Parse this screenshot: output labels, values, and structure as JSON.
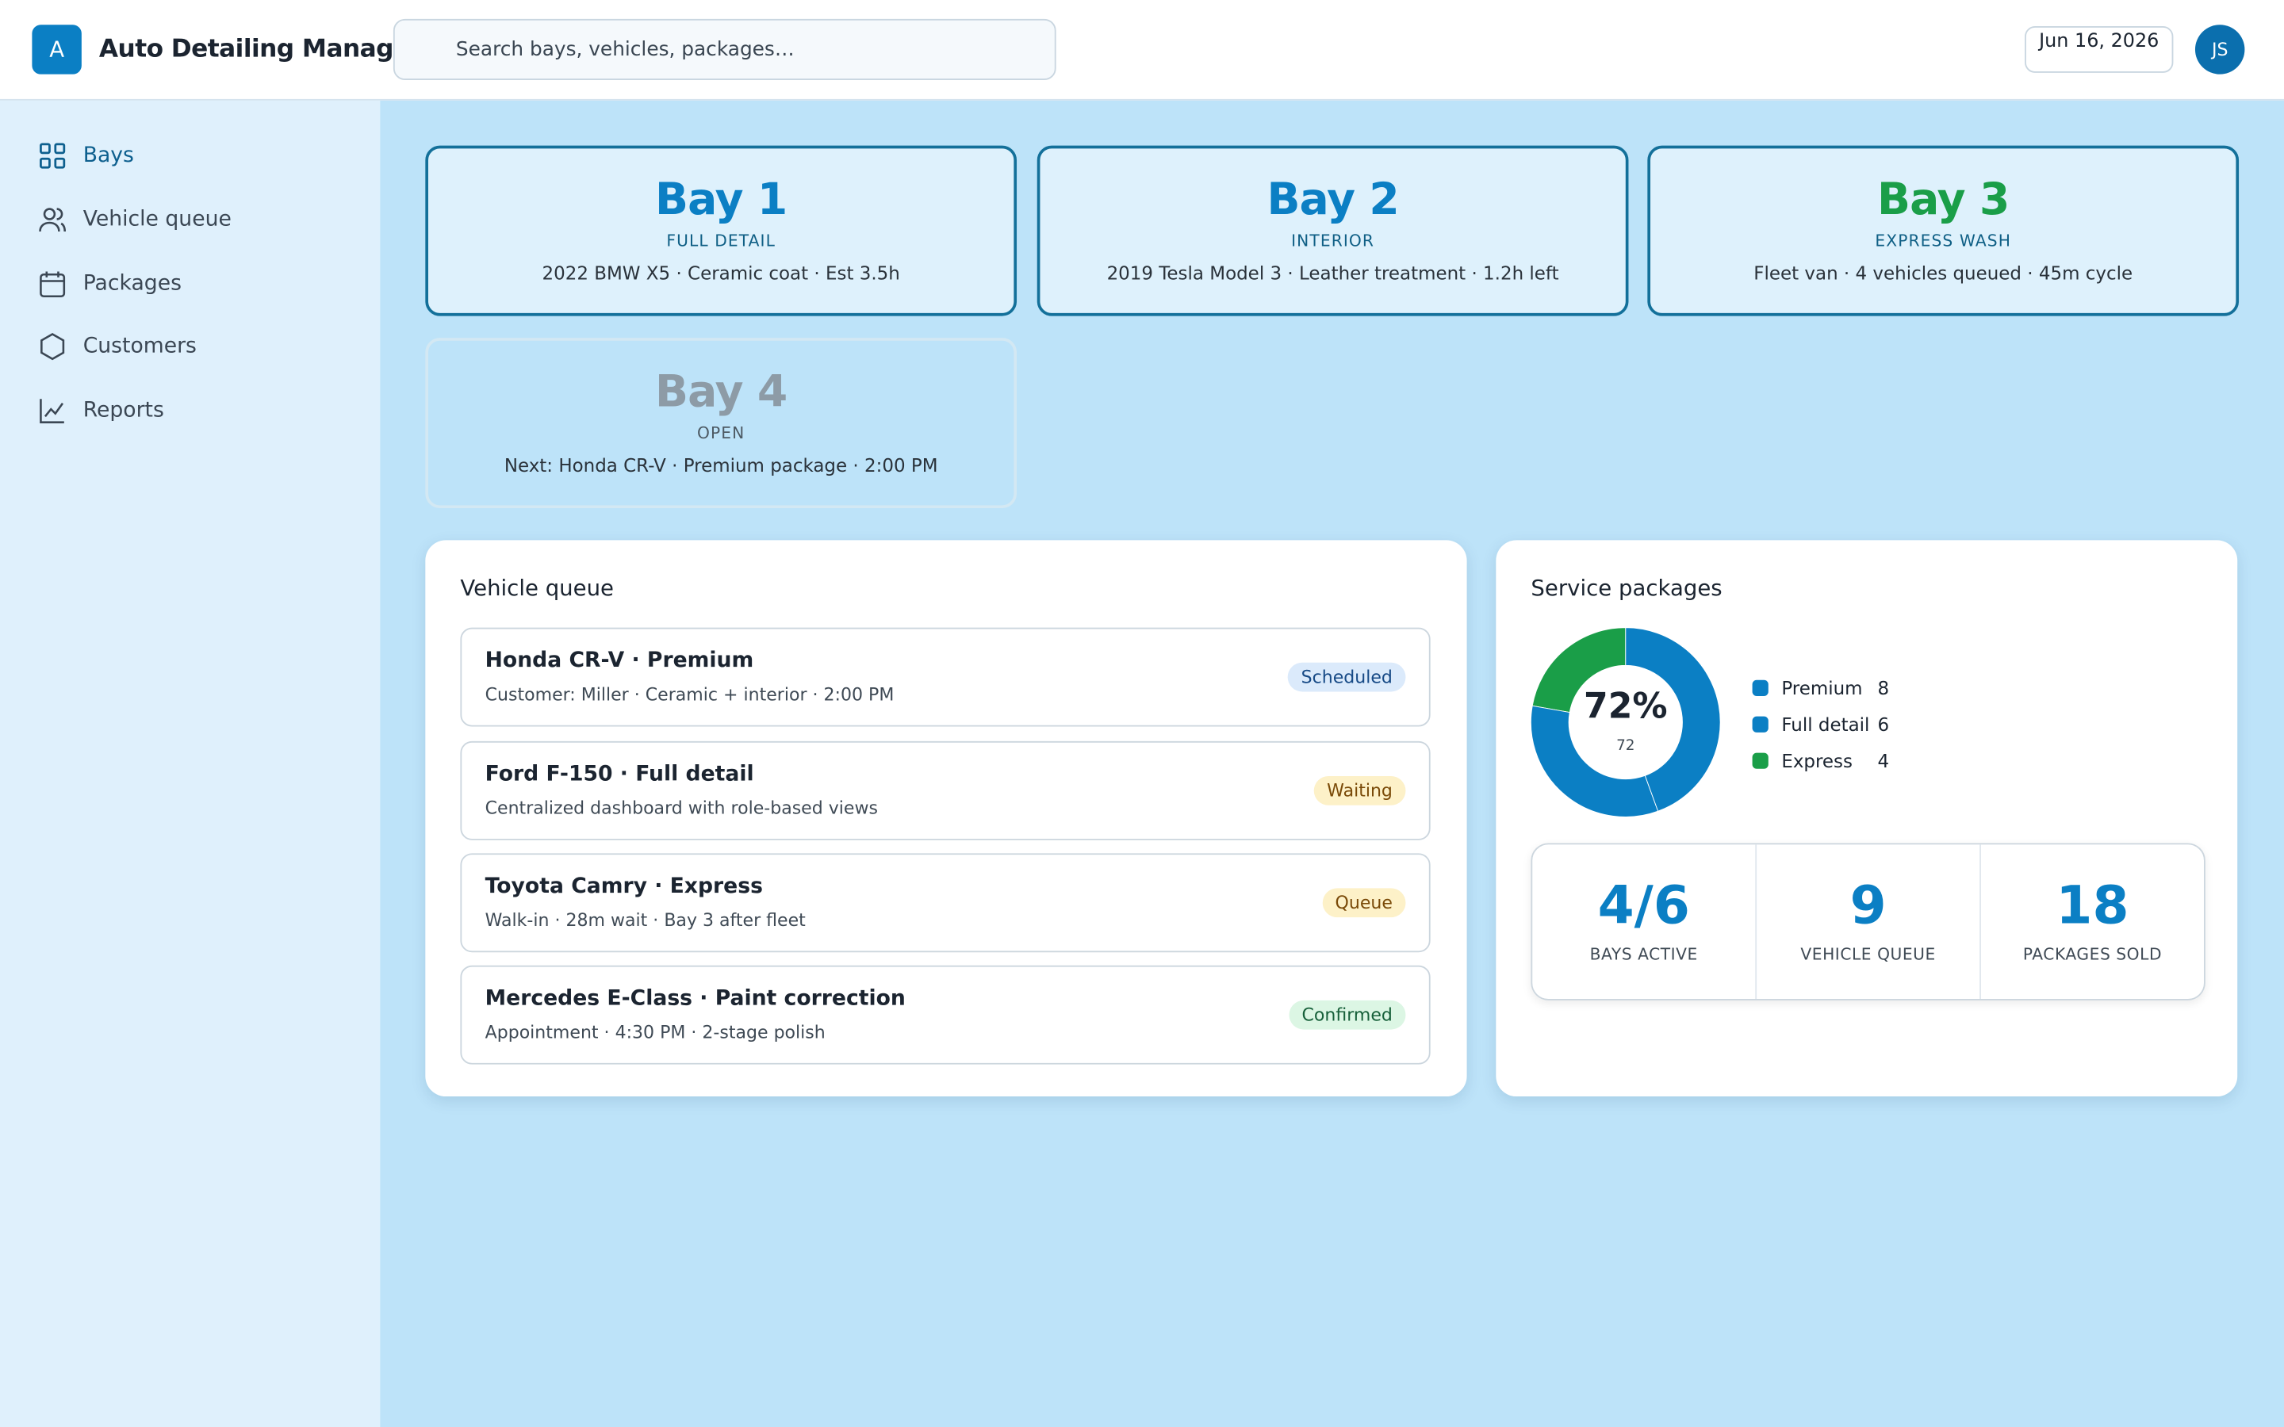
{
  "header": {
    "logo": "A",
    "title": "Auto Detailing Manager",
    "search_placeholder": "Search bays, vehicles, packages…",
    "date": "Jun 16, 2026",
    "avatar": "JS"
  },
  "nav": [
    "Bays",
    "Vehicle queue",
    "Packages",
    "Customers",
    "Reports"
  ],
  "bays": [
    {
      "name": "Bay 1",
      "type": "FULL DETAIL",
      "detail": "2022 BMW X5 · Ceramic coat · Est 3.5h"
    },
    {
      "name": "Bay 2",
      "type": "INTERIOR",
      "detail": "2019 Tesla Model 3 · Leather treatment · 1.2h left"
    },
    {
      "name": "Bay 3",
      "type": "EXPRESS WASH",
      "detail": "Fleet van · 4 vehicles queued · 45m cycle"
    },
    {
      "name": "Bay 4",
      "type": "OPEN",
      "detail": "Next: Honda CR-V · Premium package · 2:00 PM"
    }
  ],
  "queue": {
    "title": "Vehicle queue",
    "items": [
      {
        "title": "Honda CR-V · Premium",
        "subtitle": "Customer: Miller · Ceramic + interior · 2:00 PM",
        "status": "Scheduled"
      },
      {
        "title": "Ford F-150 · Full detail",
        "subtitle": "Centralized dashboard with role-based views",
        "status": "Waiting"
      },
      {
        "title": "Toyota Camry · Express",
        "subtitle": "Walk-in · 28m wait · Bay 3 after fleet",
        "status": "Queue"
      },
      {
        "title": "Mercedes E-Class · Paint correction",
        "subtitle": "Appointment · 4:30 PM · 2-stage polish",
        "status": "Confirmed"
      }
    ]
  },
  "packages": {
    "title": "Service packages",
    "center_label": "72%",
    "center_value": 72,
    "chart_data": {
      "type": "donut",
      "series": [
        {
          "name": "Premium",
          "color": "#0b7fc4",
          "value": 8
        },
        {
          "name": "Full detail",
          "color": "#0b7fc4",
          "value": 6
        },
        {
          "name": "Express",
          "color": "#1a9e48",
          "value": 4
        }
      ]
    },
    "stats": [
      {
        "value": "4/6",
        "label": "BAYS ACTIVE"
      },
      {
        "value": 9,
        "label": "VEHICLE QUEUE"
      },
      {
        "value": 18,
        "label": "PACKAGES SOLD"
      }
    ]
  }
}
